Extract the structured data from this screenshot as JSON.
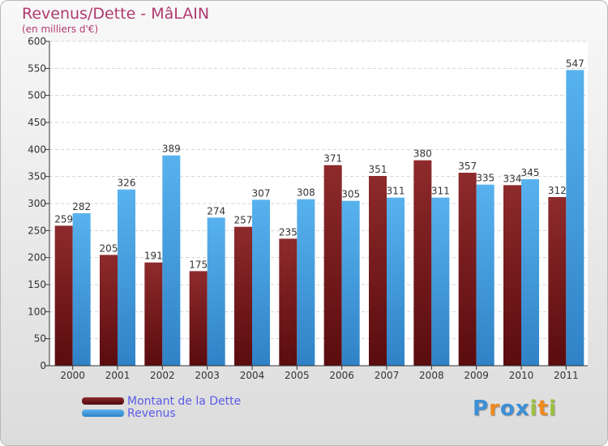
{
  "title": "Revenus/Dette - MâLAIN",
  "subtitle": "(en milliers d'€)",
  "colors": {
    "title": "#b03a6e",
    "legend_text": "#5a5ae8",
    "dette": "#7a1c1e",
    "revenus": "#4aa6e8"
  },
  "logo": {
    "text": "Proxiti",
    "letters": [
      "P",
      "r",
      "o",
      "x",
      "i",
      "t",
      "i"
    ],
    "colors": [
      "#3d8fd6",
      "#f08a1c",
      "#3d8fd6",
      "#3d8fd6",
      "#9ac23c",
      "#f08a1c",
      "#9ac23c"
    ]
  },
  "chart_data": {
    "type": "bar",
    "categories": [
      "2000",
      "2001",
      "2002",
      "2003",
      "2004",
      "2005",
      "2006",
      "2007",
      "2008",
      "2009",
      "2010",
      "2011"
    ],
    "series": [
      {
        "name": "Montant de la Dette",
        "values": [
          259,
          205,
          191,
          175,
          257,
          235,
          371,
          351,
          380,
          357,
          334,
          312
        ]
      },
      {
        "name": "Revenus",
        "values": [
          282,
          326,
          389,
          274,
          307,
          308,
          305,
          311,
          311,
          335,
          345,
          547
        ]
      }
    ],
    "yticks": [
      0,
      50,
      100,
      150,
      200,
      250,
      300,
      350,
      400,
      450,
      500,
      550,
      600
    ],
    "ylim": [
      0,
      600
    ],
    "grid": true,
    "legend_position": "bottom-left"
  }
}
